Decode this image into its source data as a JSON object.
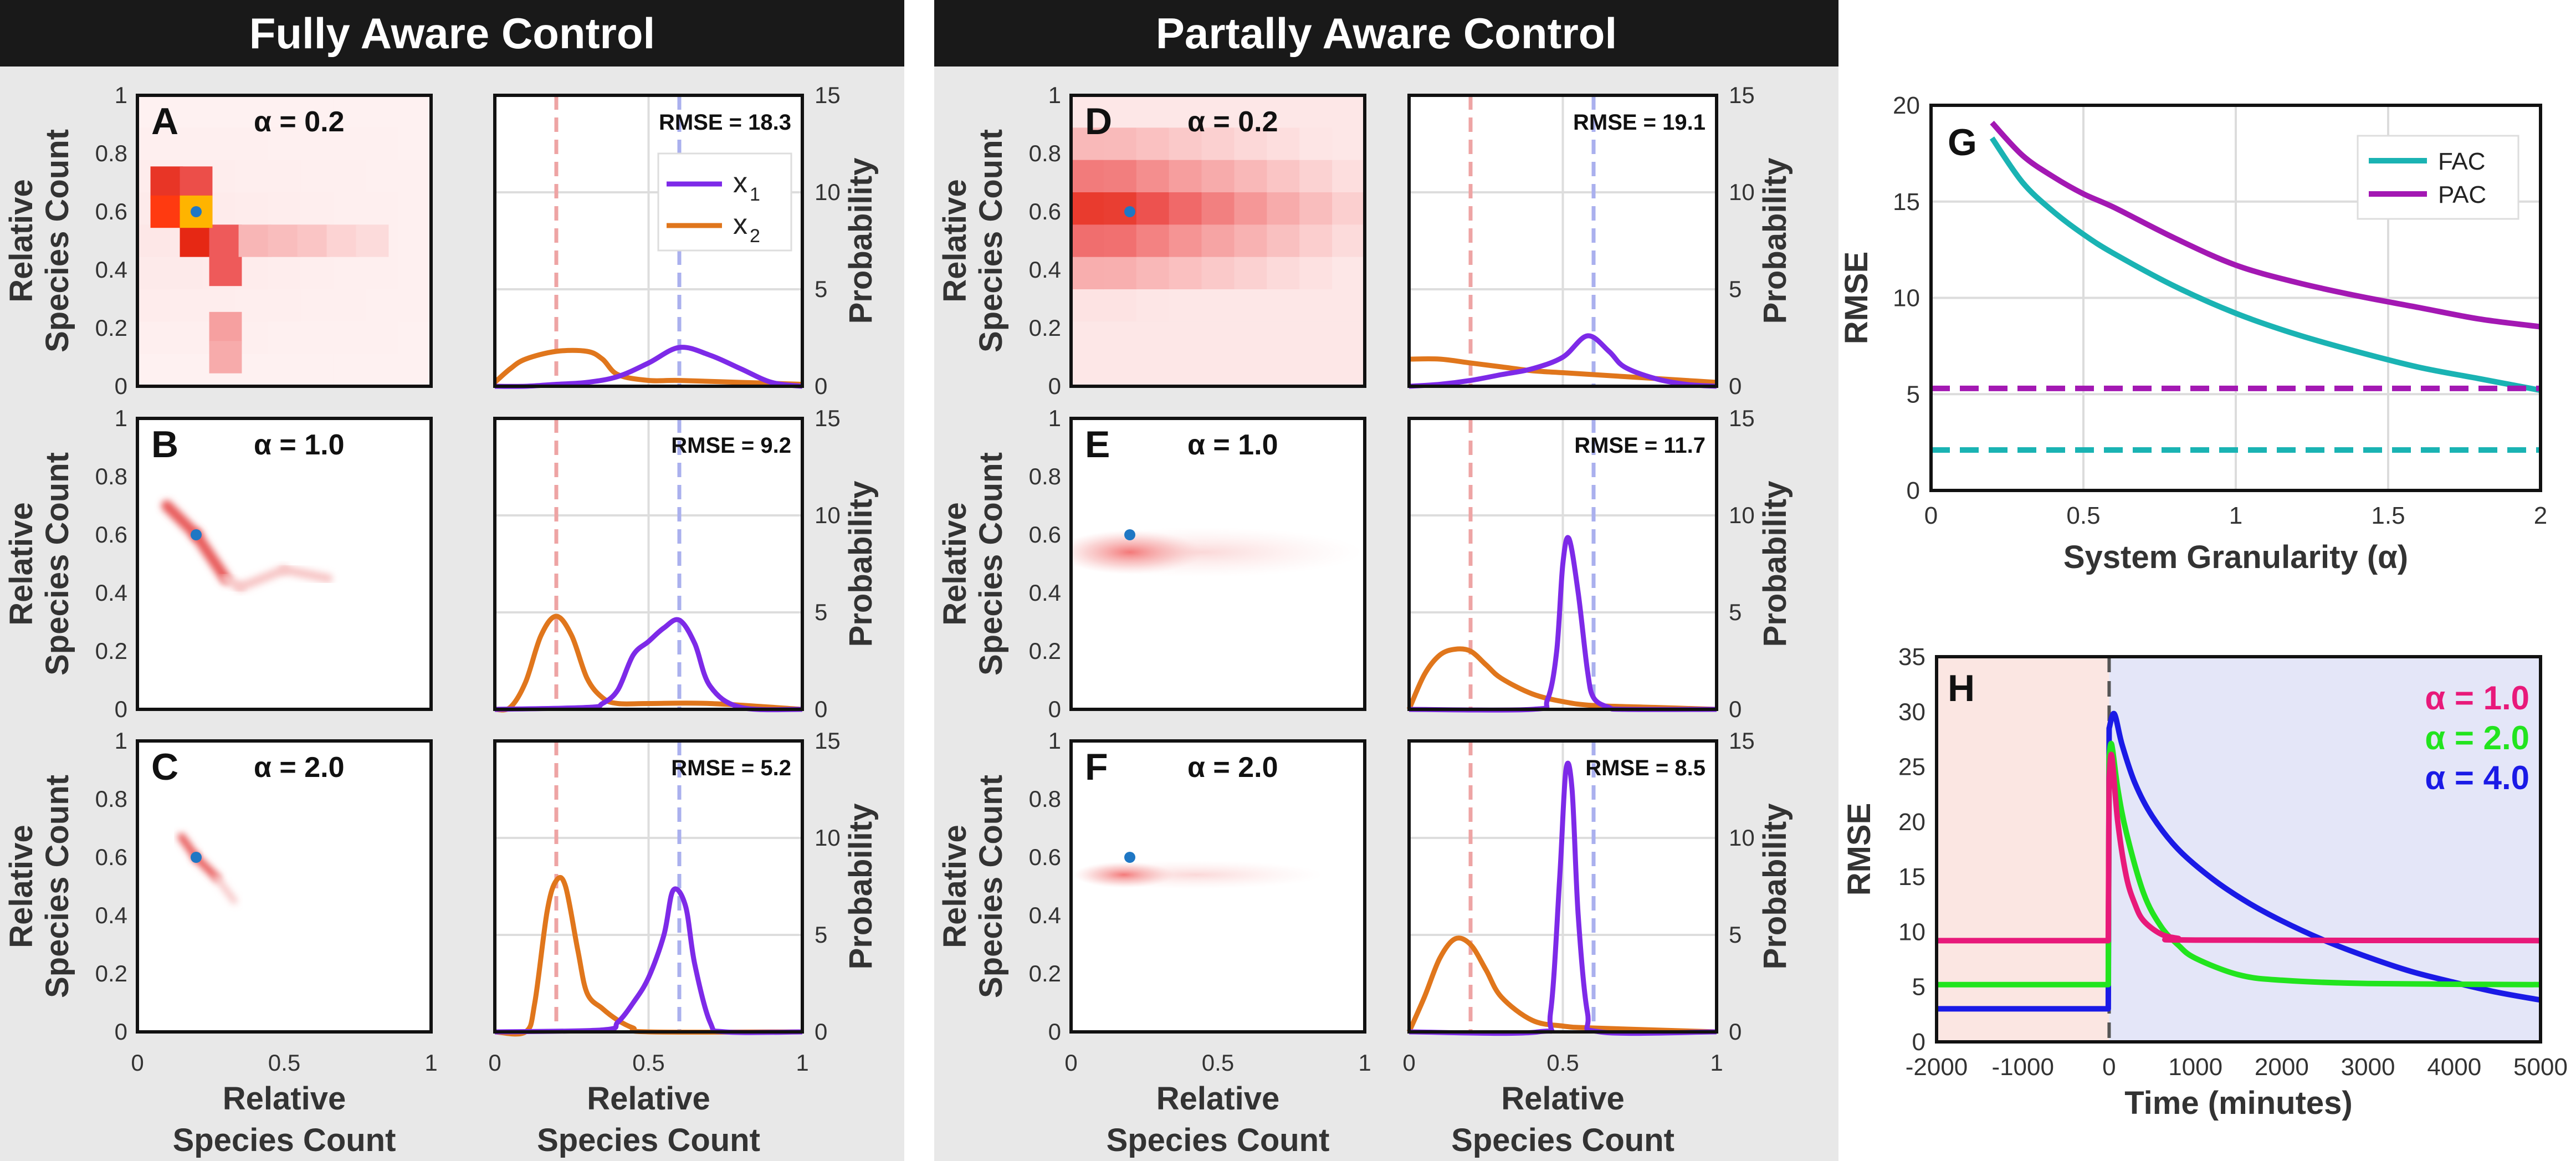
{
  "panels": {
    "fac_title": "Fully Aware Control",
    "pac_title": "Partally  Aware Control"
  },
  "common": {
    "xlabel_line1": "Relative",
    "xlabel_line2": "Species Count",
    "ylabel_left_line1": "Relative",
    "ylabel_left_line2": "Species Count",
    "ylabel_right": "Probability",
    "heat_yticks": [
      "0",
      "0.2",
      "0.4",
      "0.6",
      "0.8",
      "1"
    ],
    "heat_xticks": [
      "0",
      "0.5",
      "1"
    ],
    "dist_xticks": [
      "0",
      "0.5",
      "1"
    ],
    "dist_yticks": [
      "0",
      "5",
      "10",
      "15"
    ],
    "legend_x1": "x",
    "legend_x1_sub": "1",
    "legend_x2": "x",
    "legend_x2_sub": "2"
  },
  "chart_data": [
    {
      "type": "heatmap",
      "panel": "A",
      "alpha_label": "α = 0.2",
      "xlim": [
        0,
        1
      ],
      "ylim": [
        0,
        1
      ],
      "grid_bins": 9,
      "bins": [
        {
          "x": 0.1,
          "y": 0.7,
          "v": 0.85
        },
        {
          "x": 0.2,
          "y": 0.7,
          "v": 0.75
        },
        {
          "x": 0.1,
          "y": 0.6,
          "v": 1.0
        },
        {
          "x": 0.2,
          "y": 0.6,
          "v": 1.0
        },
        {
          "x": 0.2,
          "y": 0.5,
          "v": 0.9
        },
        {
          "x": 0.3,
          "y": 0.5,
          "v": 0.7
        },
        {
          "x": 0.3,
          "y": 0.4,
          "v": 0.7
        },
        {
          "x": 0.4,
          "y": 0.5,
          "v": 0.35
        },
        {
          "x": 0.5,
          "y": 0.5,
          "v": 0.32
        },
        {
          "x": 0.6,
          "y": 0.5,
          "v": 0.28
        },
        {
          "x": 0.7,
          "y": 0.5,
          "v": 0.22
        },
        {
          "x": 0.8,
          "y": 0.5,
          "v": 0.18
        },
        {
          "x": 0.3,
          "y": 0.2,
          "v": 0.45
        },
        {
          "x": 0.3,
          "y": 0.1,
          "v": 0.4
        }
      ],
      "target": {
        "x": 0.2,
        "y": 0.6
      }
    },
    {
      "type": "line",
      "panel": "A-dist",
      "rmse_label": "RMSE = 18.3",
      "xlim": [
        0,
        1
      ],
      "ylim": [
        0,
        15
      ],
      "ref_lines": {
        "x2_ref": 0.2,
        "x1_ref": 0.6
      },
      "series": [
        {
          "name": "x1",
          "color": "#7d2ae8",
          "x": [
            0,
            0.1,
            0.2,
            0.3,
            0.4,
            0.5,
            0.6,
            0.7,
            0.8,
            0.9,
            1.0
          ],
          "y": [
            0,
            0,
            0.1,
            0.2,
            0.5,
            1.2,
            2.0,
            1.6,
            0.9,
            0.2,
            0
          ]
        },
        {
          "name": "x2",
          "color": "#e0761c",
          "x": [
            0,
            0.05,
            0.1,
            0.2,
            0.3,
            0.35,
            0.4,
            0.5,
            0.6,
            0.8,
            1.0
          ],
          "y": [
            0.2,
            0.9,
            1.4,
            1.8,
            1.8,
            1.4,
            0.6,
            0.3,
            0.3,
            0.2,
            0.1
          ]
        }
      ]
    },
    {
      "type": "heatmap",
      "panel": "B",
      "alpha_label": "α = 1.0",
      "xlim": [
        0,
        1
      ],
      "ylim": [
        0,
        1
      ],
      "streak": [
        [
          0.1,
          0.7
        ],
        [
          0.2,
          0.6
        ],
        [
          0.3,
          0.45
        ],
        [
          0.35,
          0.42
        ],
        [
          0.5,
          0.48
        ],
        [
          0.65,
          0.45
        ]
      ],
      "target": {
        "x": 0.2,
        "y": 0.6
      }
    },
    {
      "type": "line",
      "panel": "B-dist",
      "rmse_label": "RMSE = 9.2",
      "xlim": [
        0,
        1
      ],
      "ylim": [
        0,
        15
      ],
      "ref_lines": {
        "x2_ref": 0.2,
        "x1_ref": 0.6
      },
      "series": [
        {
          "name": "x1",
          "color": "#7d2ae8",
          "x": [
            0,
            0.3,
            0.35,
            0.4,
            0.45,
            0.5,
            0.55,
            0.6,
            0.65,
            0.7,
            0.8,
            1.0
          ],
          "y": [
            0,
            0.1,
            0.3,
            1.0,
            2.8,
            3.5,
            4.2,
            4.6,
            3.4,
            1.2,
            0.1,
            0
          ]
        },
        {
          "name": "x2",
          "color": "#e0761c",
          "x": [
            0,
            0.05,
            0.1,
            0.15,
            0.2,
            0.25,
            0.3,
            0.35,
            0.4,
            0.5,
            0.7,
            1.0
          ],
          "y": [
            0,
            0.1,
            1.4,
            3.8,
            4.8,
            3.8,
            1.6,
            0.6,
            0.3,
            0.3,
            0.3,
            0
          ]
        }
      ]
    },
    {
      "type": "heatmap",
      "panel": "C",
      "alpha_label": "α = 2.0",
      "xlim": [
        0,
        1
      ],
      "ylim": [
        0,
        1
      ],
      "streak": [
        [
          0.15,
          0.67
        ],
        [
          0.2,
          0.6
        ],
        [
          0.27,
          0.53
        ],
        [
          0.33,
          0.45
        ]
      ],
      "target": {
        "x": 0.2,
        "y": 0.6
      }
    },
    {
      "type": "line",
      "panel": "C-dist",
      "rmse_label": "RMSE = 5.2",
      "xlim": [
        0,
        1
      ],
      "ylim": [
        0,
        15
      ],
      "ref_lines": {
        "x2_ref": 0.2,
        "x1_ref": 0.6
      },
      "series": [
        {
          "name": "x1",
          "color": "#7d2ae8",
          "x": [
            0,
            0.35,
            0.4,
            0.45,
            0.5,
            0.55,
            0.58,
            0.62,
            0.65,
            0.7,
            0.75,
            1.0
          ],
          "y": [
            0,
            0.1,
            0.5,
            1.5,
            2.8,
            5.0,
            7.3,
            6.5,
            3.5,
            0.5,
            0,
            0
          ]
        },
        {
          "name": "x2",
          "color": "#e0761c",
          "x": [
            0,
            0.1,
            0.13,
            0.17,
            0.2,
            0.23,
            0.27,
            0.3,
            0.35,
            0.4,
            0.45,
            0.5,
            1.0
          ],
          "y": [
            0,
            0,
            1.5,
            6.2,
            7.8,
            7.5,
            4.2,
            2.0,
            1.2,
            0.6,
            0.2,
            0,
            0
          ]
        }
      ]
    },
    {
      "type": "heatmap",
      "panel": "D",
      "alpha_label": "α = 0.2",
      "xlim": [
        0,
        1
      ],
      "ylim": [
        0,
        1
      ],
      "target": {
        "x": 0.2,
        "y": 0.6
      }
    },
    {
      "type": "line",
      "panel": "D-dist",
      "rmse_label": "RMSE = 19.1",
      "xlim": [
        0,
        1
      ],
      "ylim": [
        0,
        15
      ],
      "ref_lines": {
        "x2_ref": 0.2,
        "x1_ref": 0.6
      },
      "series": [
        {
          "name": "x1",
          "color": "#7d2ae8",
          "x": [
            0,
            0.1,
            0.2,
            0.3,
            0.4,
            0.5,
            0.58,
            0.65,
            0.7,
            0.8,
            0.9,
            1.0
          ],
          "y": [
            0,
            0.1,
            0.3,
            0.6,
            0.9,
            1.5,
            2.6,
            1.8,
            1.0,
            0.4,
            0.1,
            0
          ]
        },
        {
          "name": "x2",
          "color": "#e0761c",
          "x": [
            0,
            0.1,
            0.2,
            0.3,
            0.4,
            0.5,
            0.6,
            0.7,
            0.8,
            0.9,
            1.0
          ],
          "y": [
            1.4,
            1.4,
            1.2,
            1.0,
            0.8,
            0.7,
            0.6,
            0.5,
            0.4,
            0.3,
            0.2
          ]
        }
      ]
    },
    {
      "type": "heatmap",
      "panel": "E",
      "alpha_label": "α = 1.0",
      "xlim": [
        0,
        1
      ],
      "ylim": [
        0,
        1
      ],
      "target": {
        "x": 0.2,
        "y": 0.6
      }
    },
    {
      "type": "line",
      "panel": "E-dist",
      "rmse_label": "RMSE = 11.7",
      "xlim": [
        0,
        1
      ],
      "ylim": [
        0,
        15
      ],
      "ref_lines": {
        "x2_ref": 0.2,
        "x1_ref": 0.6
      },
      "series": [
        {
          "name": "x1",
          "color": "#7d2ae8",
          "x": [
            0,
            0.4,
            0.45,
            0.48,
            0.5,
            0.52,
            0.55,
            0.58,
            0.6,
            0.65,
            0.7,
            1.0
          ],
          "y": [
            0,
            0,
            0.5,
            3.0,
            7.5,
            8.8,
            6.0,
            2.0,
            0.6,
            0.1,
            0,
            0
          ]
        },
        {
          "name": "x2",
          "color": "#e0761c",
          "x": [
            0,
            0.05,
            0.1,
            0.15,
            0.2,
            0.25,
            0.3,
            0.4,
            0.5,
            0.6,
            0.8,
            1.0
          ],
          "y": [
            0,
            1.8,
            2.8,
            3.1,
            3.0,
            2.3,
            1.6,
            0.8,
            0.4,
            0.2,
            0.1,
            0
          ]
        }
      ]
    },
    {
      "type": "heatmap",
      "panel": "F",
      "alpha_label": "α = 2.0",
      "xlim": [
        0,
        1
      ],
      "ylim": [
        0,
        1
      ],
      "target": {
        "x": 0.2,
        "y": 0.6
      }
    },
    {
      "type": "line",
      "panel": "F-dist",
      "rmse_label": "RMSE = 8.5",
      "xlim": [
        0,
        1
      ],
      "ylim": [
        0,
        15
      ],
      "ref_lines": {
        "x2_ref": 0.2,
        "x1_ref": 0.6
      },
      "series": [
        {
          "name": "x1",
          "color": "#7d2ae8",
          "x": [
            0,
            0.42,
            0.46,
            0.49,
            0.51,
            0.53,
            0.55,
            0.58,
            0.62,
            1.0
          ],
          "y": [
            0,
            0,
            1.0,
            8.0,
            13.5,
            12.5,
            6.0,
            1.0,
            0,
            0
          ]
        },
        {
          "name": "x2",
          "color": "#e0761c",
          "x": [
            0,
            0.05,
            0.1,
            0.15,
            0.2,
            0.25,
            0.3,
            0.4,
            0.5,
            0.6,
            1.0
          ],
          "y": [
            0,
            1.8,
            3.8,
            4.8,
            4.5,
            3.2,
            1.8,
            0.6,
            0.3,
            0.2,
            0
          ]
        }
      ]
    },
    {
      "type": "line",
      "panel": "G",
      "xlabel": "System Granularity (α)",
      "ylabel": "RMSE",
      "xlim": [
        0,
        2
      ],
      "ylim": [
        0,
        20
      ],
      "xticks": [
        "0",
        "0.5",
        "1",
        "1.5",
        "2"
      ],
      "yticks": [
        "0",
        "5",
        "10",
        "15",
        "20"
      ],
      "grid": true,
      "legend_position": "top-right",
      "series": [
        {
          "name": "FAC",
          "color": "#1ab3b3",
          "x": [
            0.2,
            0.3,
            0.4,
            0.5,
            0.6,
            0.8,
            1.0,
            1.2,
            1.4,
            1.6,
            1.8,
            2.0
          ],
          "y": [
            18.3,
            16.0,
            14.5,
            13.3,
            12.3,
            10.6,
            9.2,
            8.1,
            7.2,
            6.4,
            5.8,
            5.2
          ]
        },
        {
          "name": "PAC",
          "color": "#a318b3",
          "x": [
            0.2,
            0.3,
            0.4,
            0.5,
            0.6,
            0.8,
            1.0,
            1.2,
            1.4,
            1.6,
            1.8,
            2.0
          ],
          "y": [
            19.1,
            17.4,
            16.3,
            15.4,
            14.7,
            13.1,
            11.7,
            10.8,
            10.1,
            9.5,
            8.9,
            8.5
          ]
        },
        {
          "name": "FAC-floor",
          "color": "#1ab3b3",
          "dashed": true,
          "x": [
            0,
            2
          ],
          "y": [
            2.1,
            2.1
          ]
        },
        {
          "name": "PAC-floor",
          "color": "#a318b3",
          "dashed": true,
          "x": [
            0,
            2
          ],
          "y": [
            5.3,
            5.3
          ]
        }
      ]
    },
    {
      "type": "line",
      "panel": "H",
      "xlabel": "Time (minutes)",
      "ylabel": "RMSE",
      "xlim": [
        -2000,
        5000
      ],
      "ylim": [
        0,
        35
      ],
      "xticks": [
        "-2000",
        "-1000",
        "0",
        "1000",
        "2000",
        "3000",
        "4000",
        "5000"
      ],
      "yticks": [
        "0",
        "5",
        "10",
        "15",
        "20",
        "25",
        "30",
        "35"
      ],
      "legend_position": "top-right",
      "shaded_regions": [
        {
          "x0": -2000,
          "x1": 0,
          "color": "#fbe6e2"
        },
        {
          "x0": 0,
          "x1": 5000,
          "color": "#e4e6f8"
        }
      ],
      "series": [
        {
          "name": "α = 1.0",
          "color": "#e8197a",
          "x": [
            -2000,
            -10,
            0,
            30,
            100,
            200,
            300,
            400,
            600,
            800,
            1000,
            5000
          ],
          "y": [
            9.2,
            9.2,
            24,
            26,
            20,
            15,
            12.5,
            11,
            9.8,
            9.4,
            9.25,
            9.2
          ]
        },
        {
          "name": "α = 2.0",
          "color": "#22e41e",
          "x": [
            -2000,
            -10,
            0,
            30,
            100,
            200,
            400,
            600,
            800,
            1000,
            1500,
            2000,
            3000,
            5000
          ],
          "y": [
            5.2,
            5.2,
            26,
            27,
            23,
            19,
            13.5,
            10.5,
            8.8,
            7.6,
            6.1,
            5.6,
            5.3,
            5.2
          ]
        },
        {
          "name": "α = 4.0",
          "color": "#1a1ae6",
          "x": [
            -2000,
            -10,
            0,
            60,
            150,
            300,
            500,
            800,
            1200,
            1600,
            2000,
            2500,
            3000,
            3500,
            4000,
            4500,
            5000
          ],
          "y": [
            3.0,
            3.0,
            28.5,
            29.8,
            27,
            23.5,
            20.5,
            17.5,
            14.8,
            12.7,
            11.0,
            9.2,
            7.7,
            6.4,
            5.4,
            4.5,
            3.8
          ]
        }
      ]
    }
  ],
  "panel_letters": {
    "A": "A",
    "B": "B",
    "C": "C",
    "D": "D",
    "E": "E",
    "F": "F",
    "G": "G",
    "H": "H"
  }
}
